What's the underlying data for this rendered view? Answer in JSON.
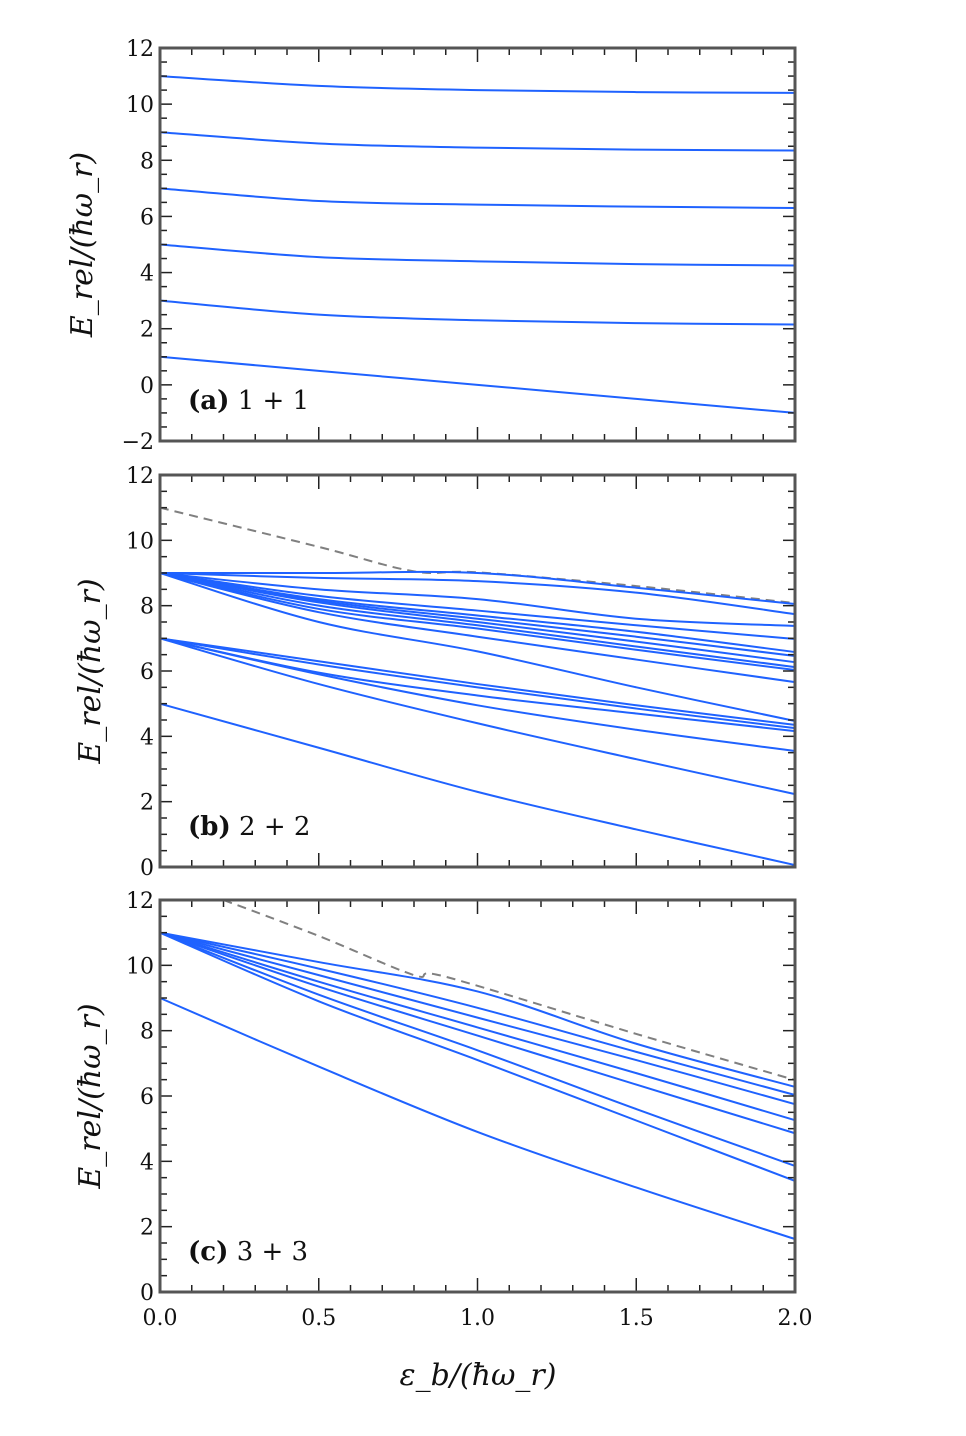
{
  "colors": {
    "series": "#1f62ff",
    "dashed": "#808080",
    "frame": "#555555"
  },
  "chart_data": [
    {
      "type": "line",
      "panel_label": "(a)",
      "panel_text": "1 + 1",
      "ylabel": "E_rel/(ħω_r)",
      "xlabel": "",
      "xlim": [
        0,
        2
      ],
      "ylim": [
        -2,
        12
      ],
      "yticks": [
        "−2",
        "0",
        "2",
        "4",
        "6",
        "8",
        "10",
        "12"
      ],
      "xticks": [],
      "series": [
        {
          "style": "solid",
          "x": [
            0,
            0.5,
            1,
            1.5,
            2
          ],
          "y": [
            1,
            0.5,
            0,
            -0.5,
            -1.0
          ]
        },
        {
          "style": "solid",
          "x": [
            0,
            0.5,
            1,
            1.5,
            2
          ],
          "y": [
            3,
            2.5,
            2.3,
            2.2,
            2.15
          ]
        },
        {
          "style": "solid",
          "x": [
            0,
            0.5,
            1,
            1.5,
            2
          ],
          "y": [
            5,
            4.55,
            4.4,
            4.3,
            4.25
          ]
        },
        {
          "style": "solid",
          "x": [
            0,
            0.5,
            1,
            1.5,
            2
          ],
          "y": [
            7,
            6.55,
            6.42,
            6.35,
            6.3
          ]
        },
        {
          "style": "solid",
          "x": [
            0,
            0.5,
            1,
            1.5,
            2
          ],
          "y": [
            9,
            8.6,
            8.45,
            8.38,
            8.35
          ]
        },
        {
          "style": "solid",
          "x": [
            0,
            0.5,
            1,
            1.5,
            2
          ],
          "y": [
            11,
            10.65,
            10.5,
            10.43,
            10.4
          ]
        }
      ]
    },
    {
      "type": "line",
      "panel_label": "(b)",
      "panel_text": "2 + 2",
      "ylabel": "E_rel/(ħω_r)",
      "xlabel": "",
      "xlim": [
        0,
        2
      ],
      "ylim": [
        0,
        12
      ],
      "yticks": [
        "0",
        "2",
        "4",
        "6",
        "8",
        "10",
        "12"
      ],
      "xticks": [],
      "series": [
        {
          "style": "dashed",
          "x": [
            0,
            0.5,
            0.8,
            1,
            1.5,
            2
          ],
          "y": [
            11,
            9.8,
            9.05,
            9.02,
            8.6,
            8.08
          ]
        },
        {
          "style": "solid",
          "x": [
            0,
            0.5,
            1,
            1.5,
            2
          ],
          "y": [
            9,
            9.0,
            9.0,
            8.55,
            8.05
          ]
        },
        {
          "style": "solid",
          "x": [
            0,
            0.5,
            1,
            1.5,
            2
          ],
          "y": [
            9,
            8.85,
            8.75,
            8.4,
            7.74
          ]
        },
        {
          "style": "solid",
          "x": [
            0,
            0.5,
            1,
            1.5,
            2
          ],
          "y": [
            9,
            8.5,
            8.2,
            7.6,
            7.38
          ]
        },
        {
          "style": "solid",
          "x": [
            0,
            0.5,
            1,
            1.5,
            2
          ],
          "y": [
            9,
            8.3,
            7.85,
            7.4,
            6.98
          ]
        },
        {
          "style": "solid",
          "x": [
            0,
            0.5,
            1,
            1.5,
            2
          ],
          "y": [
            9,
            8.2,
            7.7,
            7.2,
            6.58
          ]
        },
        {
          "style": "solid",
          "x": [
            0,
            0.5,
            1,
            1.5,
            2
          ],
          "y": [
            9,
            8.15,
            7.6,
            7.05,
            6.46
          ]
        },
        {
          "style": "solid",
          "x": [
            0,
            0.5,
            1,
            1.5,
            2
          ],
          "y": [
            9,
            8.1,
            7.5,
            6.9,
            6.27
          ]
        },
        {
          "style": "solid",
          "x": [
            0,
            0.5,
            1,
            1.5,
            2
          ],
          "y": [
            9,
            8.0,
            7.4,
            6.75,
            6.12
          ]
        },
        {
          "style": "solid",
          "x": [
            0,
            0.5,
            1,
            1.5,
            2
          ],
          "y": [
            9,
            7.9,
            7.3,
            6.65,
            6.03
          ]
        },
        {
          "style": "solid",
          "x": [
            0,
            0.5,
            1,
            1.5,
            2
          ],
          "y": [
            9,
            7.8,
            7.05,
            6.35,
            5.66
          ]
        },
        {
          "style": "solid",
          "x": [
            0,
            0.5,
            1,
            1.5,
            2
          ],
          "y": [
            9,
            7.5,
            6.6,
            5.5,
            4.47
          ]
        },
        {
          "style": "solid",
          "x": [
            0,
            0.5,
            1,
            1.5,
            2
          ],
          "y": [
            7,
            6.3,
            5.6,
            4.95,
            4.35
          ]
        },
        {
          "style": "solid",
          "x": [
            0,
            0.5,
            1,
            1.5,
            2
          ],
          "y": [
            7,
            6.2,
            5.5,
            4.85,
            4.25
          ]
        },
        {
          "style": "solid",
          "x": [
            0,
            0.5,
            1,
            1.5,
            2
          ],
          "y": [
            7,
            5.95,
            5.25,
            4.7,
            4.16
          ]
        },
        {
          "style": "solid",
          "x": [
            0,
            0.5,
            1,
            1.5,
            2
          ],
          "y": [
            7,
            5.9,
            4.95,
            4.2,
            3.55
          ]
        },
        {
          "style": "solid",
          "x": [
            0,
            0.5,
            1,
            1.5,
            2
          ],
          "y": [
            7,
            5.6,
            4.4,
            3.3,
            2.23
          ]
        },
        {
          "style": "solid",
          "x": [
            0,
            0.5,
            1,
            1.5,
            2
          ],
          "y": [
            5,
            3.65,
            2.3,
            1.15,
            0.06
          ]
        }
      ]
    },
    {
      "type": "line",
      "panel_label": "(c)",
      "panel_text": "3 + 3",
      "ylabel": "E_rel/(ħω_r)",
      "xlabel": "ε_b/(ħω_r)",
      "xlim": [
        0,
        2
      ],
      "ylim": [
        0,
        12
      ],
      "yticks": [
        "0",
        "2",
        "4",
        "6",
        "8",
        "10",
        "12"
      ],
      "xticks": [
        "0.0",
        "0.5",
        "1.0",
        "1.5",
        "2.0"
      ],
      "series": [
        {
          "style": "dashed",
          "x": [
            0.2,
            0.5,
            0.8,
            0.9,
            1.5,
            2
          ],
          "y": [
            12,
            10.9,
            9.7,
            9.65,
            7.9,
            6.49
          ]
        },
        {
          "style": "solid",
          "x": [
            0,
            0.5,
            1,
            1.5,
            2
          ],
          "y": [
            11,
            10.1,
            9.2,
            7.6,
            6.28
          ]
        },
        {
          "style": "solid",
          "x": [
            0,
            0.5,
            1,
            1.5,
            2
          ],
          "y": [
            11,
            9.9,
            8.7,
            7.35,
            6.03
          ]
        },
        {
          "style": "solid",
          "x": [
            0,
            0.5,
            1,
            1.5,
            2
          ],
          "y": [
            11,
            9.7,
            8.4,
            7.1,
            5.75
          ]
        },
        {
          "style": "solid",
          "x": [
            0,
            0.5,
            1,
            1.5,
            2
          ],
          "y": [
            11,
            9.5,
            8.1,
            6.7,
            5.26
          ]
        },
        {
          "style": "solid",
          "x": [
            0,
            0.5,
            1,
            1.5,
            2
          ],
          "y": [
            11,
            9.35,
            7.85,
            6.35,
            4.86
          ]
        },
        {
          "style": "solid",
          "x": [
            0,
            0.5,
            1,
            1.5,
            2
          ],
          "y": [
            11,
            9.1,
            7.4,
            5.6,
            3.86
          ]
        },
        {
          "style": "solid",
          "x": [
            0,
            0.5,
            1,
            1.5,
            2
          ],
          "y": [
            11,
            8.9,
            7.1,
            5.25,
            3.4
          ]
        },
        {
          "style": "solid",
          "x": [
            0,
            0.5,
            1,
            1.5,
            2
          ],
          "y": [
            9,
            6.9,
            4.9,
            3.2,
            1.62
          ]
        }
      ]
    }
  ]
}
